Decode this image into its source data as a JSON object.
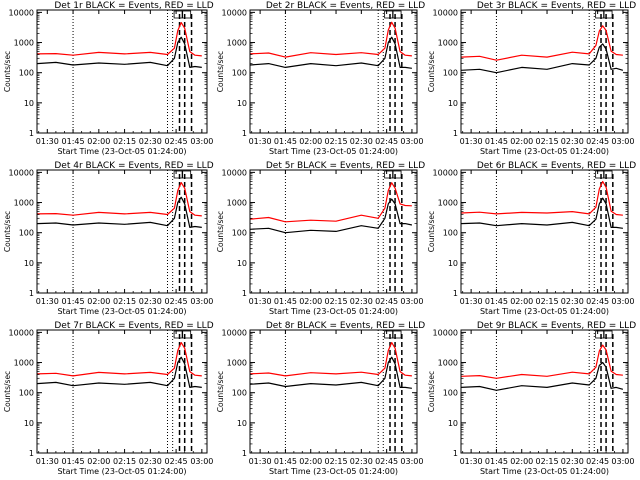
{
  "colors": {
    "events": "#000000",
    "lld": "#ff0000",
    "background": "#ffffff",
    "axes": "#000000"
  },
  "chart_data": [
    {
      "type": "line",
      "title": "Det 1r BLACK = Events, RED = LLD",
      "xlabel": "Start Time (23-Oct-05 01:24:00)",
      "ylabel": "Counts/sec",
      "xticks": [
        "01:30",
        "01:45",
        "02:00",
        "02:15",
        "02:30",
        "02:45",
        "03:00"
      ],
      "yticks": [
        "1",
        "10",
        "100",
        "1000",
        "10000"
      ],
      "ylog": true,
      "xlim": [
        "01:24",
        "03:03"
      ],
      "ylim": [
        1,
        12000
      ],
      "x": [
        "01:24",
        "01:35",
        "01:45",
        "02:00",
        "02:15",
        "02:30",
        "02:40",
        "02:44",
        "02:46",
        "02:48",
        "02:50",
        "02:53",
        "02:56",
        "03:00"
      ],
      "series": [
        {
          "name": "LLD",
          "values": [
            420,
            430,
            380,
            470,
            420,
            470,
            400,
            650,
            2500,
            4600,
            3000,
            500,
            380,
            360
          ]
        },
        {
          "name": "Events",
          "values": [
            200,
            220,
            180,
            210,
            190,
            220,
            170,
            300,
            1000,
            1500,
            900,
            150,
            160,
            150
          ]
        }
      ]
    },
    {
      "type": "line",
      "title": "Det 2r BLACK = Events, RED = LLD",
      "xlabel": "Start Time (23-Oct-05 01:24:00)",
      "ylabel": "Counts/sec",
      "xticks": [
        "01:30",
        "01:45",
        "02:00",
        "02:15",
        "02:30",
        "02:45",
        "03:00"
      ],
      "yticks": [
        "1",
        "10",
        "100",
        "1000",
        "10000"
      ],
      "ylog": true,
      "xlim": [
        "01:24",
        "03:03"
      ],
      "ylim": [
        1,
        12000
      ],
      "x": [
        "01:24",
        "01:35",
        "01:45",
        "02:00",
        "02:15",
        "02:30",
        "02:40",
        "02:44",
        "02:46",
        "02:48",
        "02:50",
        "02:53",
        "02:56",
        "03:00"
      ],
      "series": [
        {
          "name": "LLD",
          "values": [
            420,
            450,
            330,
            460,
            400,
            460,
            400,
            650,
            2600,
            4700,
            3000,
            500,
            380,
            360
          ]
        },
        {
          "name": "Events",
          "values": [
            180,
            200,
            150,
            200,
            170,
            210,
            170,
            300,
            1000,
            1500,
            900,
            150,
            150,
            140
          ]
        }
      ]
    },
    {
      "type": "line",
      "title": "Det 3r BLACK = Events, RED = LLD",
      "xlabel": "Start Time (23-Oct-05 01:24:00)",
      "ylabel": "Counts/sec",
      "xticks": [
        "01:30",
        "01:45",
        "02:00",
        "02:15",
        "02:30",
        "02:45",
        "03:00"
      ],
      "yticks": [
        "1",
        "10",
        "100",
        "1000",
        "10000"
      ],
      "ylog": true,
      "xlim": [
        "01:24",
        "03:03"
      ],
      "ylim": [
        1,
        12000
      ],
      "x": [
        "01:24",
        "01:35",
        "01:45",
        "02:00",
        "02:15",
        "02:30",
        "02:40",
        "02:44",
        "02:46",
        "02:48",
        "02:50",
        "02:53",
        "02:56",
        "03:00"
      ],
      "series": [
        {
          "name": "LLD",
          "values": [
            330,
            350,
            260,
            380,
            330,
            480,
            420,
            800,
            2400,
            3600,
            2500,
            520,
            400,
            380
          ]
        },
        {
          "name": "Events",
          "values": [
            120,
            130,
            100,
            150,
            130,
            200,
            180,
            300,
            700,
            900,
            600,
            130,
            140,
            120
          ]
        }
      ]
    },
    {
      "type": "line",
      "title": "Det 4r BLACK = Events, RED = LLD",
      "xlabel": "Start Time (23-Oct-05 01:24:00)",
      "ylabel": "Counts/sec",
      "xticks": [
        "01:30",
        "01:45",
        "02:00",
        "02:15",
        "02:30",
        "02:45",
        "03:00"
      ],
      "yticks": [
        "1",
        "10",
        "100",
        "1000",
        "10000"
      ],
      "ylog": true,
      "xlim": [
        "01:24",
        "03:03"
      ],
      "ylim": [
        1,
        12000
      ],
      "x": [
        "01:24",
        "01:35",
        "01:45",
        "02:00",
        "02:15",
        "02:30",
        "02:40",
        "02:44",
        "02:46",
        "02:48",
        "02:50",
        "02:53",
        "02:56",
        "03:00"
      ],
      "series": [
        {
          "name": "LLD",
          "values": [
            420,
            430,
            380,
            470,
            420,
            470,
            400,
            650,
            2500,
            4600,
            3000,
            500,
            380,
            360
          ]
        },
        {
          "name": "Events",
          "values": [
            200,
            210,
            180,
            210,
            190,
            220,
            170,
            300,
            1000,
            1500,
            900,
            150,
            160,
            150
          ]
        }
      ]
    },
    {
      "type": "line",
      "title": "Det 5r BLACK = Events, RED = LLD",
      "xlabel": "Start Time (23-Oct-05 01:24:00)",
      "ylabel": "Counts/sec",
      "xticks": [
        "01:30",
        "01:45",
        "02:00",
        "02:15",
        "02:30",
        "02:45",
        "03:00"
      ],
      "yticks": [
        "1",
        "10",
        "100",
        "1000",
        "10000"
      ],
      "ylog": true,
      "xlim": [
        "01:24",
        "03:03"
      ],
      "ylim": [
        1,
        12000
      ],
      "x": [
        "01:24",
        "01:35",
        "01:45",
        "02:00",
        "02:15",
        "02:30",
        "02:40",
        "02:44",
        "02:46",
        "02:48",
        "02:50",
        "02:53",
        "02:56",
        "03:00"
      ],
      "series": [
        {
          "name": "LLD",
          "values": [
            280,
            320,
            230,
            260,
            240,
            380,
            300,
            650,
            2500,
            4500,
            3000,
            900,
            800,
            780
          ]
        },
        {
          "name": "Events",
          "values": [
            130,
            140,
            100,
            120,
            110,
            170,
            140,
            300,
            900,
            1300,
            900,
            200,
            200,
            180
          ]
        }
      ]
    },
    {
      "type": "line",
      "title": "Det 6r BLACK = Events, RED = LLD",
      "xlabel": "Start Time (23-Oct-05 01:24:00)",
      "ylabel": "Counts/sec",
      "xticks": [
        "01:30",
        "01:45",
        "02:00",
        "02:15",
        "02:30",
        "02:45",
        "03:00"
      ],
      "yticks": [
        "1",
        "10",
        "100",
        "1000",
        "10000"
      ],
      "ylog": true,
      "xlim": [
        "01:24",
        "03:03"
      ],
      "ylim": [
        1,
        12000
      ],
      "x": [
        "01:24",
        "01:35",
        "01:45",
        "02:00",
        "02:15",
        "02:30",
        "02:40",
        "02:44",
        "02:46",
        "02:48",
        "02:50",
        "02:53",
        "02:56",
        "03:00"
      ],
      "series": [
        {
          "name": "LLD",
          "values": [
            450,
            480,
            420,
            470,
            450,
            500,
            420,
            700,
            2800,
            5000,
            3200,
            520,
            400,
            380
          ]
        },
        {
          "name": "Events",
          "values": [
            200,
            210,
            170,
            200,
            180,
            220,
            170,
            280,
            900,
            1400,
            900,
            150,
            150,
            140
          ]
        }
      ]
    },
    {
      "type": "line",
      "title": "Det 7r BLACK = Events, RED = LLD",
      "xlabel": "Start Time (23-Oct-05 01:24:00)",
      "ylabel": "Counts/sec",
      "xticks": [
        "01:30",
        "01:45",
        "02:00",
        "02:15",
        "02:30",
        "02:45",
        "03:00"
      ],
      "yticks": [
        "1",
        "10",
        "100",
        "1000",
        "10000"
      ],
      "ylog": true,
      "xlim": [
        "01:24",
        "03:03"
      ],
      "ylim": [
        1,
        12000
      ],
      "x": [
        "01:24",
        "01:35",
        "01:45",
        "02:00",
        "02:15",
        "02:30",
        "02:40",
        "02:44",
        "02:46",
        "02:48",
        "02:50",
        "02:53",
        "02:56",
        "03:00"
      ],
      "series": [
        {
          "name": "LLD",
          "values": [
            420,
            440,
            360,
            470,
            420,
            470,
            400,
            650,
            2500,
            4600,
            3000,
            500,
            380,
            360
          ]
        },
        {
          "name": "Events",
          "values": [
            200,
            220,
            170,
            210,
            190,
            220,
            170,
            300,
            1000,
            1500,
            900,
            150,
            160,
            150
          ]
        }
      ]
    },
    {
      "type": "line",
      "title": "Det 8r BLACK = Events, RED = LLD",
      "xlabel": "Start Time (23-Oct-05 01:24:00)",
      "ylabel": "Counts/sec",
      "xticks": [
        "01:30",
        "01:45",
        "02:00",
        "02:15",
        "02:30",
        "02:45",
        "03:00"
      ],
      "yticks": [
        "1",
        "10",
        "100",
        "1000",
        "10000"
      ],
      "ylog": true,
      "xlim": [
        "01:24",
        "03:03"
      ],
      "ylim": [
        1,
        12000
      ],
      "x": [
        "01:24",
        "01:35",
        "01:45",
        "02:00",
        "02:15",
        "02:30",
        "02:40",
        "02:44",
        "02:46",
        "02:48",
        "02:50",
        "02:53",
        "02:56",
        "03:00"
      ],
      "series": [
        {
          "name": "LLD",
          "values": [
            420,
            450,
            360,
            460,
            420,
            480,
            400,
            650,
            2500,
            4600,
            3000,
            500,
            380,
            360
          ]
        },
        {
          "name": "Events",
          "values": [
            190,
            210,
            160,
            200,
            180,
            220,
            170,
            300,
            1000,
            1500,
            900,
            150,
            150,
            140
          ]
        }
      ]
    },
    {
      "type": "line",
      "title": "Det 9r BLACK = Events, RED = LLD",
      "xlabel": "Start Time (23-Oct-05 01:24:00)",
      "ylabel": "Counts/sec",
      "xticks": [
        "01:30",
        "01:45",
        "02:00",
        "02:15",
        "02:30",
        "02:45",
        "03:00"
      ],
      "yticks": [
        "1",
        "10",
        "100",
        "1000",
        "10000"
      ],
      "ylog": true,
      "xlim": [
        "01:24",
        "03:03"
      ],
      "ylim": [
        1,
        12000
      ],
      "x": [
        "01:24",
        "01:35",
        "01:45",
        "02:00",
        "02:15",
        "02:30",
        "02:40",
        "02:44",
        "02:46",
        "02:48",
        "02:50",
        "02:53",
        "02:56",
        "03:00"
      ],
      "series": [
        {
          "name": "LLD",
          "values": [
            350,
            370,
            300,
            400,
            350,
            480,
            420,
            700,
            2400,
            3800,
            2600,
            520,
            400,
            380
          ]
        },
        {
          "name": "Events",
          "values": [
            150,
            160,
            120,
            170,
            150,
            210,
            180,
            300,
            800,
            1000,
            700,
            140,
            150,
            130
          ]
        }
      ]
    }
  ]
}
